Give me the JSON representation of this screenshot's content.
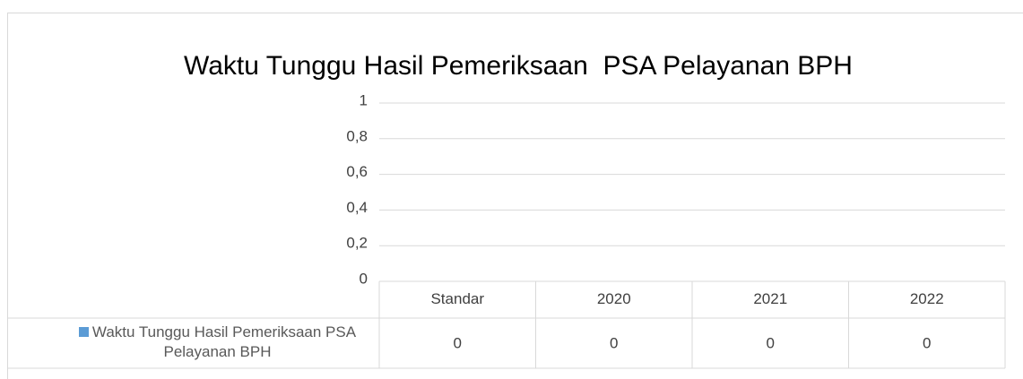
{
  "chart_data": {
    "type": "bar",
    "title": "Waktu Tunggu Hasil Pemeriksaan  PSA Pelayanan BPH",
    "categories": [
      "Standar",
      "2020",
      "2021",
      "2022"
    ],
    "series": [
      {
        "name": "Waktu Tunggu Hasil Pemeriksaan PSA Pelayanan BPH",
        "color": "#5b9bd5",
        "values": [
          0,
          0,
          0,
          0
        ]
      }
    ],
    "ylim": [
      0,
      1
    ],
    "yticks": [
      0,
      {
        "value": 0.2,
        "label": "0,2"
      },
      {
        "value": 0.4,
        "label": "0,4"
      },
      {
        "value": 0.6,
        "label": "0,6"
      },
      {
        "value": 0.8,
        "label": "0,8"
      },
      1
    ],
    "grid": true,
    "data_table": true
  }
}
